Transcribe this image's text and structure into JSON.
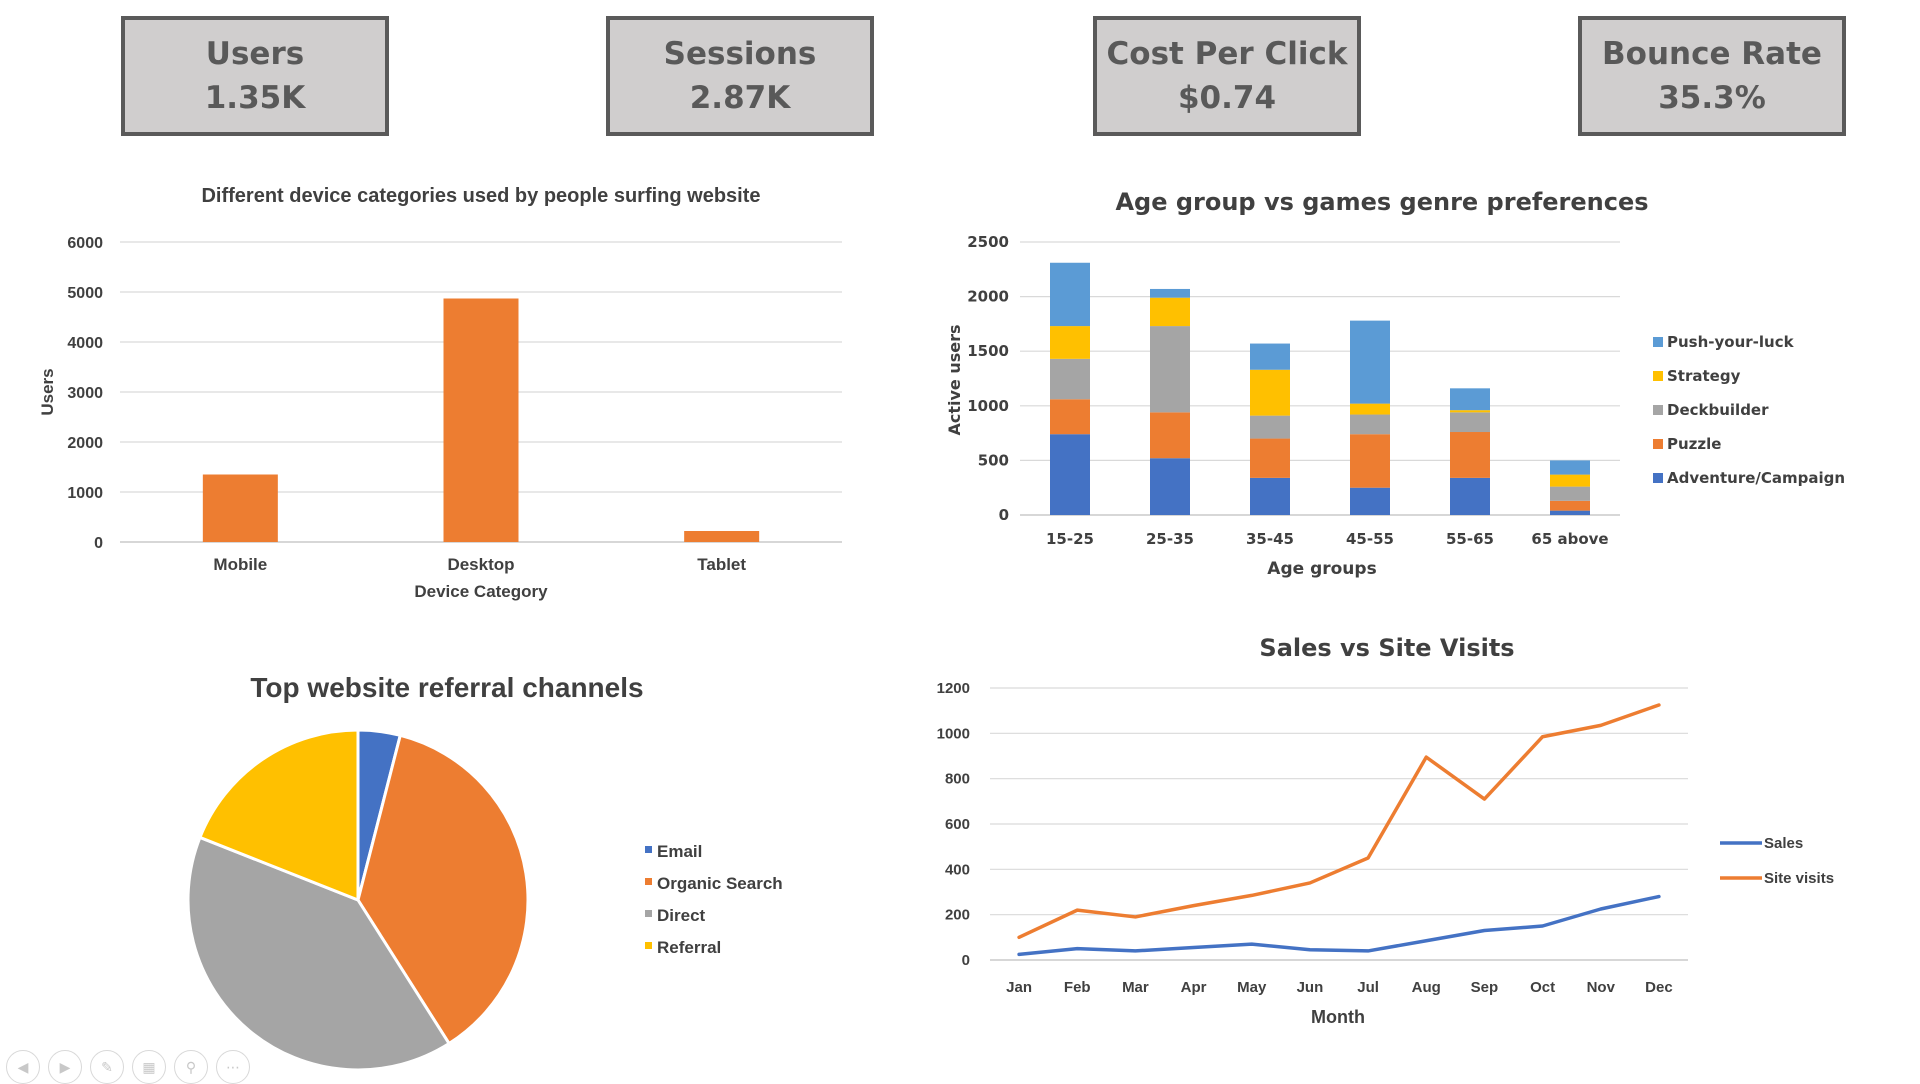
{
  "kpis": [
    {
      "label": "Users",
      "value": "1.35K"
    },
    {
      "label": "Sessions",
      "value": "2.87K"
    },
    {
      "label": "Cost Per Click",
      "value": "$0.74"
    },
    {
      "label": "Bounce Rate",
      "value": "35.3%"
    }
  ],
  "colors": {
    "blue": "#4472c4",
    "orange": "#ed7d31",
    "gray": "#a5a5a5",
    "yellow": "#ffc000",
    "lightblue": "#5b9bd5",
    "kpi_bg": "#d0cece",
    "kpi_border": "#5a5a5a"
  },
  "chart_data": [
    {
      "type": "bar",
      "title": "Different device categories used by people surfing website",
      "xlabel": "Device Category",
      "ylabel": "Users",
      "ylim": [
        0,
        6000
      ],
      "yticks": [
        "0",
        "1000",
        "2000",
        "3000",
        "4000",
        "5000",
        "6000"
      ],
      "categories": [
        "Mobile",
        "Desktop",
        "Tablet"
      ],
      "values": [
        1350,
        4870,
        220
      ],
      "grid": true,
      "legend": "none"
    },
    {
      "type": "bar",
      "stacked": true,
      "title": "Age group vs games genre preferences",
      "xlabel": "Age groups",
      "ylabel": "Active users",
      "ylim": [
        0,
        2500
      ],
      "yticks": [
        "0",
        "500",
        "1000",
        "1500",
        "2000",
        "2500"
      ],
      "categories": [
        "15-25",
        "25-35",
        "35-45",
        "45-55",
        "55-65",
        "65 above"
      ],
      "series": [
        {
          "name": "Adventure/Campaign",
          "values": [
            740,
            520,
            340,
            250,
            340,
            40
          ]
        },
        {
          "name": "Puzzle",
          "values": [
            320,
            420,
            360,
            490,
            420,
            90
          ]
        },
        {
          "name": "Deckbuilder",
          "values": [
            370,
            790,
            210,
            180,
            180,
            130
          ]
        },
        {
          "name": "Strategy",
          "values": [
            300,
            260,
            420,
            100,
            20,
            110
          ]
        },
        {
          "name": "Push-your-luck",
          "values": [
            580,
            80,
            240,
            760,
            200,
            130
          ]
        }
      ],
      "grid": true,
      "legend": "right"
    },
    {
      "type": "pie",
      "title": "Top website referral channels",
      "categories": [
        "Email",
        "Organic Search",
        "Direct",
        "Referral"
      ],
      "values": [
        4,
        37,
        40,
        19
      ],
      "legend": "right"
    },
    {
      "type": "line",
      "title": "Sales vs Site Visits",
      "xlabel": "Month",
      "ylabel": "",
      "ylim": [
        0,
        1200
      ],
      "yticks": [
        "0",
        "200",
        "400",
        "600",
        "800",
        "1000",
        "1200"
      ],
      "categories": [
        "Jan",
        "Feb",
        "Mar",
        "Apr",
        "May",
        "Jun",
        "Jul",
        "Aug",
        "Sep",
        "Oct",
        "Nov",
        "Dec"
      ],
      "series": [
        {
          "name": "Sales",
          "values": [
            25,
            50,
            40,
            55,
            70,
            45,
            40,
            85,
            130,
            150,
            225,
            280
          ]
        },
        {
          "name": "Site visits",
          "values": [
            100,
            220,
            190,
            240,
            285,
            340,
            450,
            895,
            710,
            985,
            1035,
            1125
          ]
        }
      ],
      "grid": true,
      "legend": "right"
    }
  ]
}
